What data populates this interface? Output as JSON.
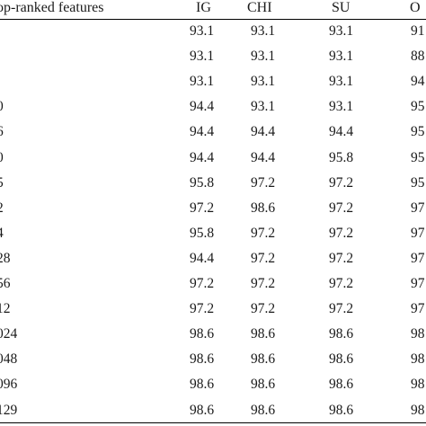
{
  "table": {
    "headers": [
      "op-ranked features",
      "IG",
      "CHI",
      "SU",
      "O"
    ],
    "rows": [
      {
        "feat": "",
        "ig": "93.1",
        "chi": "93.1",
        "su": "93.1",
        "o": "91"
      },
      {
        "feat": "",
        "ig": "93.1",
        "chi": "93.1",
        "su": "93.1",
        "o": "88"
      },
      {
        "feat": "",
        "ig": "93.1",
        "chi": "93.1",
        "su": "93.1",
        "o": "94"
      },
      {
        "feat": "0",
        "ig": "94.4",
        "chi": "93.1",
        "su": "93.1",
        "o": "95"
      },
      {
        "feat": "6",
        "ig": "94.4",
        "chi": "94.4",
        "su": "94.4",
        "o": "95"
      },
      {
        "feat": "0",
        "ig": "94.4",
        "chi": "94.4",
        "su": "95.8",
        "o": "95"
      },
      {
        "feat": "5",
        "ig": "95.8",
        "chi": "97.2",
        "su": "97.2",
        "o": "95"
      },
      {
        "feat": "2",
        "ig": "97.2",
        "chi": "98.6",
        "su": "97.2",
        "o": "97"
      },
      {
        "feat": "4",
        "ig": "95.8",
        "chi": "97.2",
        "su": "97.2",
        "o": "97"
      },
      {
        "feat": "28",
        "ig": "94.4",
        "chi": "97.2",
        "su": "97.2",
        "o": "97"
      },
      {
        "feat": "56",
        "ig": "97.2",
        "chi": "97.2",
        "su": "97.2",
        "o": "97"
      },
      {
        "feat": "12",
        "ig": "97.2",
        "chi": "97.2",
        "su": "97.2",
        "o": "97"
      },
      {
        "feat": "024",
        "ig": "98.6",
        "chi": "98.6",
        "su": "98.6",
        "o": "98"
      },
      {
        "feat": "048",
        "ig": "98.6",
        "chi": "98.6",
        "su": "98.6",
        "o": "98"
      },
      {
        "feat": "096",
        "ig": "98.6",
        "chi": "98.6",
        "su": "98.6",
        "o": "98"
      },
      {
        "feat": "129",
        "ig": "98.6",
        "chi": "98.6",
        "su": "98.6",
        "o": "98"
      }
    ]
  }
}
